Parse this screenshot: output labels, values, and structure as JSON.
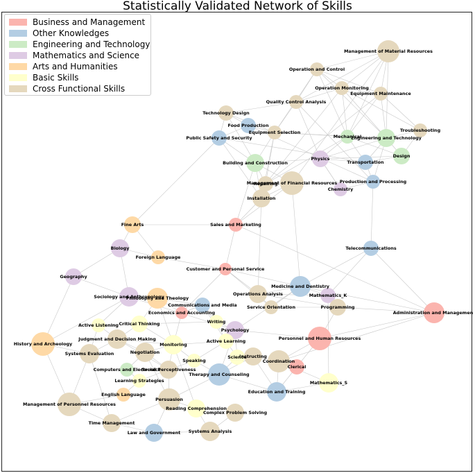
{
  "title": "Statistically Validated Network of Skills",
  "legend": [
    {
      "label": "Business and Management",
      "color": "#fbb4ae"
    },
    {
      "label": "Other Knowledges",
      "color": "#b3cde3"
    },
    {
      "label": "Engineering and Technology",
      "color": "#ccebc5"
    },
    {
      "label": "Mathematics and Science",
      "color": "#decbe4"
    },
    {
      "label": "Arts and Humanities",
      "color": "#fed9a6"
    },
    {
      "label": "Basic Skills",
      "color": "#ffffcc"
    },
    {
      "label": "Cross Functional Skills",
      "color": "#e5d8bd"
    }
  ],
  "nodes": [
    {
      "label": "Management of Material Resources",
      "category": "Cross Functional Skills"
    },
    {
      "label": "Operation and Control",
      "category": "Cross Functional Skills"
    },
    {
      "label": "Operation Monitoring",
      "category": "Cross Functional Skills"
    },
    {
      "label": "Equipment Maintenance",
      "category": "Cross Functional Skills"
    },
    {
      "label": "Quality Control Analysis",
      "category": "Cross Functional Skills"
    },
    {
      "label": "Technology Design",
      "category": "Cross Functional Skills"
    },
    {
      "label": "Food Production",
      "category": "Other Knowledges"
    },
    {
      "label": "Equipment Selection",
      "category": "Cross Functional Skills"
    },
    {
      "label": "Public Safety and Security",
      "category": "Other Knowledges"
    },
    {
      "label": "Mechanical",
      "category": "Engineering and Technology"
    },
    {
      "label": "Engineering and Technology",
      "category": "Engineering and Technology"
    },
    {
      "label": "Troubleshooting",
      "category": "Cross Functional Skills"
    },
    {
      "label": "Design",
      "category": "Engineering and Technology"
    },
    {
      "label": "Physics",
      "category": "Mathematics and Science"
    },
    {
      "label": "Transportation",
      "category": "Other Knowledges"
    },
    {
      "label": "Building and Construction",
      "category": "Engineering and Technology"
    },
    {
      "label": "Repairing",
      "category": "Cross Functional Skills"
    },
    {
      "label": "Management of Financial Resources",
      "category": "Cross Functional Skills"
    },
    {
      "label": "Production and Processing",
      "category": "Other Knowledges"
    },
    {
      "label": "Chemistry",
      "category": "Mathematics and Science"
    },
    {
      "label": "Installation",
      "category": "Cross Functional Skills"
    },
    {
      "label": "Fine Arts",
      "category": "Arts and Humanities"
    },
    {
      "label": "Sales and Marketing",
      "category": "Business and Management"
    },
    {
      "label": "Biology",
      "category": "Mathematics and Science"
    },
    {
      "label": "Telecommunications",
      "category": "Other Knowledges"
    },
    {
      "label": "Foreign Language",
      "category": "Arts and Humanities"
    },
    {
      "label": "Customer and Personal Service",
      "category": "Business and Management"
    },
    {
      "label": "Geography",
      "category": "Mathematics and Science"
    },
    {
      "label": "Medicine and Dentistry",
      "category": "Other Knowledges"
    },
    {
      "label": "Operations Analysis",
      "category": "Cross Functional Skills"
    },
    {
      "label": "Sociology and Anthropology",
      "category": "Mathematics and Science"
    },
    {
      "label": "Philosophy and Theology",
      "category": "Arts and Humanities"
    },
    {
      "label": "Mathematics_K",
      "category": "Mathematics and Science"
    },
    {
      "label": "Communications and Media",
      "category": "Other Knowledges"
    },
    {
      "label": "Service Orientation",
      "category": "Cross Functional Skills"
    },
    {
      "label": "Programming",
      "category": "Cross Functional Skills"
    },
    {
      "label": "Economics and Accounting",
      "category": "Business and Management"
    },
    {
      "label": "Administration and Management",
      "category": "Business and Management"
    },
    {
      "label": "Active Listening",
      "category": "Basic Skills"
    },
    {
      "label": "Critical Thinking",
      "category": "Basic Skills"
    },
    {
      "label": "Writing",
      "category": "Basic Skills"
    },
    {
      "label": "Psychology",
      "category": "Mathematics and Science"
    },
    {
      "label": "History and Archeology",
      "category": "Arts and Humanities"
    },
    {
      "label": "Judgment and Decision Making",
      "category": "Cross Functional Skills"
    },
    {
      "label": "Active Learning",
      "category": "Basic Skills"
    },
    {
      "label": "Personnel and Human Resources",
      "category": "Business and Management"
    },
    {
      "label": "Monitoring",
      "category": "Basic Skills"
    },
    {
      "label": "Negotiation",
      "category": "Cross Functional Skills"
    },
    {
      "label": "Systems Evaluation",
      "category": "Cross Functional Skills"
    },
    {
      "label": "Science",
      "category": "Basic Skills"
    },
    {
      "label": "Instructing",
      "category": "Cross Functional Skills"
    },
    {
      "label": "Speaking",
      "category": "Basic Skills"
    },
    {
      "label": "Coordination",
      "category": "Cross Functional Skills"
    },
    {
      "label": "Computers and Electronics",
      "category": "Engineering and Technology"
    },
    {
      "label": "Social Perceptiveness",
      "category": "Cross Functional Skills"
    },
    {
      "label": "Clerical",
      "category": "Business and Management"
    },
    {
      "label": "Therapy and Counseling",
      "category": "Other Knowledges"
    },
    {
      "label": "Learning Strategies",
      "category": "Basic Skills"
    },
    {
      "label": "Mathematics_S",
      "category": "Basic Skills"
    },
    {
      "label": "English Language",
      "category": "Arts and Humanities"
    },
    {
      "label": "Education and Training",
      "category": "Other Knowledges"
    },
    {
      "label": "Persuasion",
      "category": "Cross Functional Skills"
    },
    {
      "label": "Management of Personnel Resources",
      "category": "Cross Functional Skills"
    },
    {
      "label": "Reading Comprehension",
      "category": "Basic Skills"
    },
    {
      "label": "Complex Problem Solving",
      "category": "Cross Functional Skills"
    },
    {
      "label": "Time Management",
      "category": "Cross Functional Skills"
    },
    {
      "label": "Law and Government",
      "category": "Other Knowledges"
    },
    {
      "label": "Systems Analysis",
      "category": "Cross Functional Skills"
    }
  ]
}
